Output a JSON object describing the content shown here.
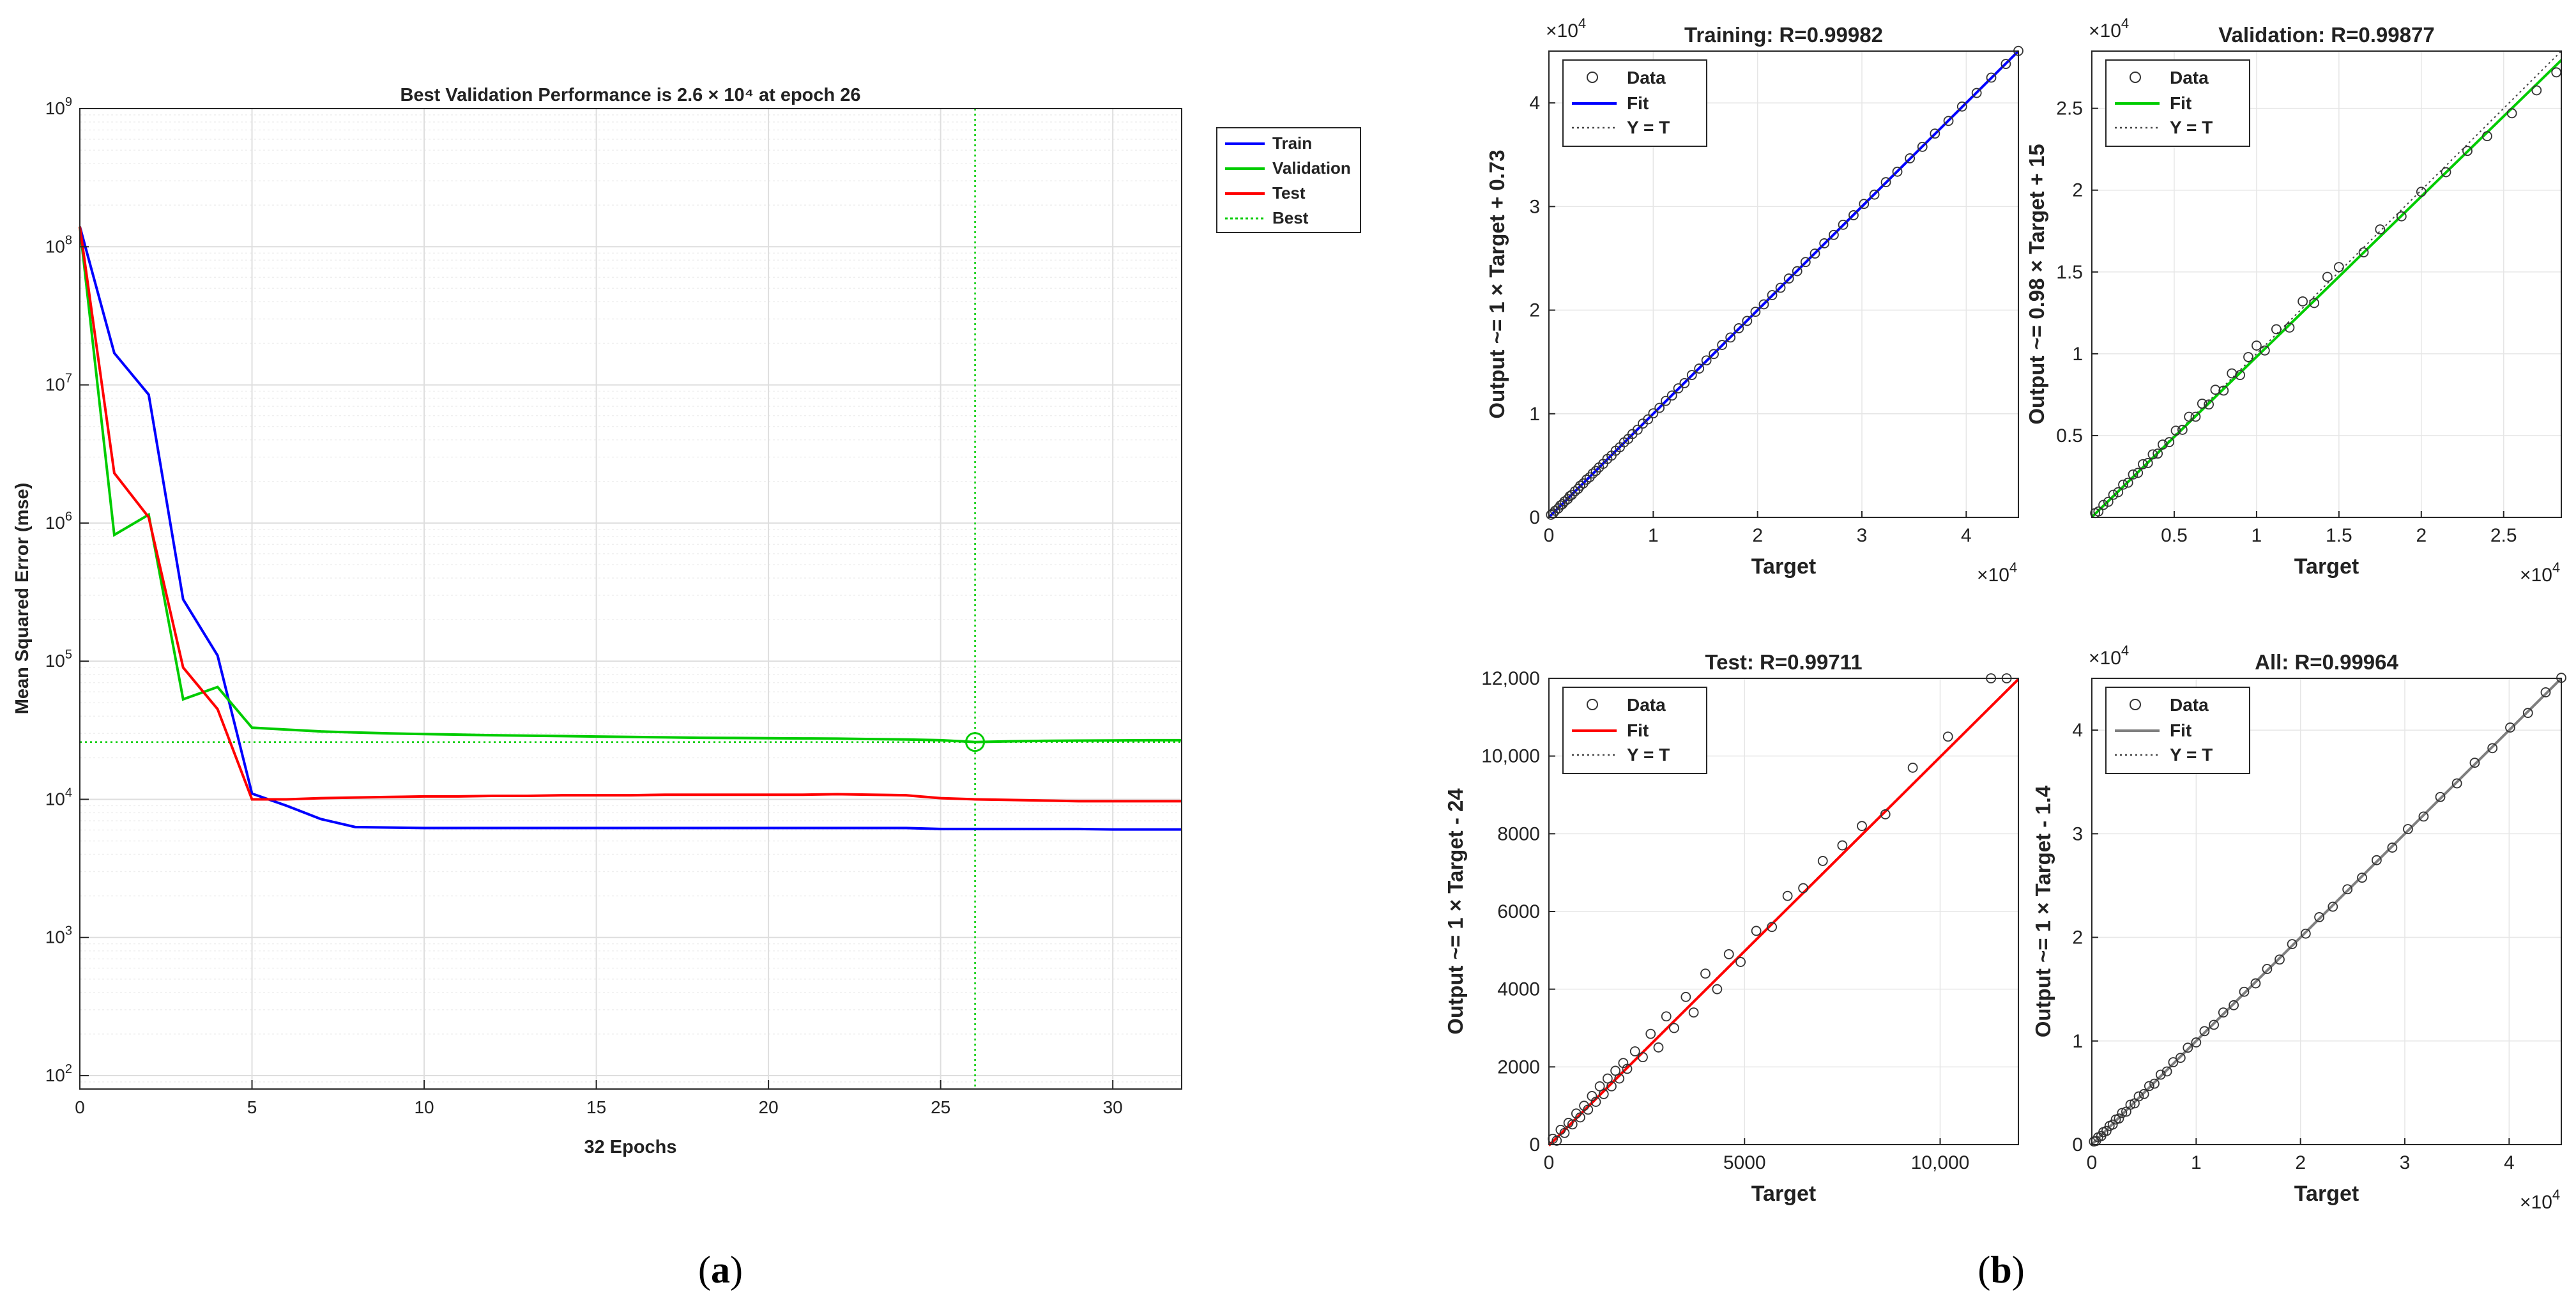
{
  "figure": {
    "caption_a": {
      "open": "(",
      "letter": "a",
      "close": ")"
    },
    "caption_b": {
      "open": "(",
      "letter": "b",
      "close": ")"
    }
  },
  "colors": {
    "train": "#0000ff",
    "validation": "#00cc00",
    "test": "#ff0000",
    "all": "#7f7f7f",
    "grid": "#e6e6e6",
    "axis": "#262626"
  },
  "chart_data": [
    {
      "id": "performance",
      "type": "line",
      "title": "Best Validation Performance is 2.6 × 10⁴ at epoch 26",
      "xlabel": "32 Epochs",
      "ylabel": "Mean Squared Error  (mse)",
      "yscale": "log",
      "xlim": [
        0,
        32
      ],
      "ylim": [
        80,
        1000000000
      ],
      "xticks": [
        0,
        5,
        10,
        15,
        20,
        25,
        30
      ],
      "yticks": [
        {
          "v": 100,
          "base": "10",
          "exp": "2"
        },
        {
          "v": 1000,
          "base": "10",
          "exp": "3"
        },
        {
          "v": 10000,
          "base": "10",
          "exp": "4"
        },
        {
          "v": 100000,
          "base": "10",
          "exp": "5"
        },
        {
          "v": 1000000,
          "base": "10",
          "exp": "6"
        },
        {
          "v": 10000000,
          "base": "10",
          "exp": "7"
        },
        {
          "v": 100000000,
          "base": "10",
          "exp": "8"
        },
        {
          "v": 1000000000,
          "base": "10",
          "exp": "9"
        }
      ],
      "x": [
        0,
        1,
        2,
        3,
        4,
        5,
        6,
        7,
        8,
        9,
        10,
        11,
        12,
        13,
        14,
        15,
        16,
        17,
        18,
        19,
        20,
        21,
        22,
        23,
        24,
        25,
        26,
        27,
        28,
        29,
        30,
        31,
        32
      ],
      "series": [
        {
          "name": "Train",
          "color": "#0000ff",
          "values": [
            140000000,
            17000000,
            8500000,
            280000,
            110000,
            11000,
            9000,
            7200,
            6300,
            6250,
            6200,
            6200,
            6200,
            6200,
            6200,
            6200,
            6200,
            6200,
            6200,
            6200,
            6200,
            6200,
            6200,
            6200,
            6200,
            6100,
            6100,
            6100,
            6100,
            6100,
            6050,
            6050,
            6050
          ]
        },
        {
          "name": "Validation",
          "color": "#00cc00",
          "values": [
            140000000,
            820000,
            1150000,
            53000,
            65000,
            33000,
            32000,
            31000,
            30500,
            30000,
            29700,
            29400,
            29100,
            28900,
            28700,
            28500,
            28300,
            28100,
            27900,
            27800,
            27700,
            27600,
            27500,
            27300,
            27100,
            26800,
            26000,
            26300,
            26500,
            26600,
            26700,
            26800,
            26800
          ]
        },
        {
          "name": "Test",
          "color": "#ff0000",
          "values": [
            140000000,
            2300000,
            1100000,
            90000,
            45000,
            10000,
            10000,
            10200,
            10300,
            10400,
            10500,
            10500,
            10600,
            10600,
            10700,
            10700,
            10700,
            10800,
            10800,
            10800,
            10800,
            10800,
            10900,
            10800,
            10700,
            10200,
            10000,
            9900,
            9800,
            9700,
            9700,
            9700,
            9700
          ]
        }
      ],
      "best": {
        "name": "Best",
        "epoch": 26,
        "value": 26000,
        "color": "#00cc00"
      },
      "legend": [
        "Train",
        "Validation",
        "Test",
        "Best"
      ]
    },
    {
      "id": "training",
      "type": "scatter",
      "title": "Training: R=0.99982",
      "xlabel": "Target",
      "ylabel": "Output ~= 1 × Target + 0.73",
      "xlim": [
        0,
        45000
      ],
      "ylim": [
        0,
        45000
      ],
      "xticks": [
        0,
        10000,
        20000,
        30000,
        40000
      ],
      "xticklabels": [
        "0",
        "1",
        "2",
        "3",
        "4"
      ],
      "yticks": [
        0,
        10000,
        20000,
        30000,
        40000
      ],
      "yticklabels": [
        "0",
        "1",
        "2",
        "3",
        "4"
      ],
      "exponent": {
        "base": "×10",
        "exp": "4"
      },
      "fit": {
        "slope": 1.0,
        "intercept": 0.73,
        "color": "#0000ff"
      },
      "points": [
        [
          200,
          250
        ],
        [
          400,
          380
        ],
        [
          600,
          640
        ],
        [
          900,
          870
        ],
        [
          1100,
          1150
        ],
        [
          1300,
          1280
        ],
        [
          1500,
          1540
        ],
        [
          1800,
          1760
        ],
        [
          2000,
          2050
        ],
        [
          2200,
          2180
        ],
        [
          2500,
          2520
        ],
        [
          2800,
          2760
        ],
        [
          3000,
          3050
        ],
        [
          3300,
          3280
        ],
        [
          3600,
          3640
        ],
        [
          3900,
          3870
        ],
        [
          4200,
          4230
        ],
        [
          4500,
          4480
        ],
        [
          4800,
          4820
        ],
        [
          5200,
          5170
        ],
        [
          5600,
          5640
        ],
        [
          6000,
          5960
        ],
        [
          6400,
          6430
        ],
        [
          6800,
          6770
        ],
        [
          7200,
          7240
        ],
        [
          7600,
          7570
        ],
        [
          8000,
          8040
        ],
        [
          8500,
          8460
        ],
        [
          9000,
          9050
        ],
        [
          9500,
          9460
        ],
        [
          10000,
          10040
        ],
        [
          10600,
          10570
        ],
        [
          11200,
          11240
        ],
        [
          11800,
          11760
        ],
        [
          12400,
          12450
        ],
        [
          13000,
          12960
        ],
        [
          13700,
          13740
        ],
        [
          14400,
          14360
        ],
        [
          15100,
          15150
        ],
        [
          15800,
          15760
        ],
        [
          16600,
          16640
        ],
        [
          17400,
          17360
        ],
        [
          18200,
          18250
        ],
        [
          19000,
          18960
        ],
        [
          19800,
          19840
        ],
        [
          20600,
          20560
        ],
        [
          21400,
          21450
        ],
        [
          22200,
          22160
        ],
        [
          23000,
          23050
        ],
        [
          23800,
          23760
        ],
        [
          24600,
          24640
        ],
        [
          25500,
          25460
        ],
        [
          26400,
          26450
        ],
        [
          27300,
          27260
        ],
        [
          28200,
          28240
        ],
        [
          29200,
          29160
        ],
        [
          30200,
          30250
        ],
        [
          31200,
          31150
        ],
        [
          32300,
          32350
        ],
        [
          33400,
          33360
        ],
        [
          34600,
          34650
        ],
        [
          35800,
          35760
        ],
        [
          37000,
          37040
        ],
        [
          38300,
          38260
        ],
        [
          39600,
          39650
        ],
        [
          41000,
          40960
        ],
        [
          42400,
          42440
        ],
        [
          43800,
          43760
        ],
        [
          45000,
          45020
        ]
      ]
    },
    {
      "id": "validation",
      "type": "scatter",
      "title": "Validation: R=0.99877",
      "xlabel": "Target",
      "ylabel": "Output ~= 0.98 × Target + 15",
      "xlim": [
        0,
        28500
      ],
      "ylim": [
        0,
        28500
      ],
      "xticks": [
        5000,
        10000,
        15000,
        20000,
        25000
      ],
      "xticklabels": [
        "0.5",
        "1",
        "1.5",
        "2",
        "2.5"
      ],
      "yticks": [
        5000,
        10000,
        15000,
        20000,
        25000
      ],
      "yticklabels": [
        "0.5",
        "1",
        "1.5",
        "2",
        "2.5"
      ],
      "exponent": {
        "base": "×10",
        "exp": "4"
      },
      "fit": {
        "slope": 0.98,
        "intercept": 15,
        "color": "#00cc00"
      },
      "points": [
        [
          200,
          260
        ],
        [
          400,
          360
        ],
        [
          700,
          760
        ],
        [
          1000,
          950
        ],
        [
          1300,
          1380
        ],
        [
          1600,
          1540
        ],
        [
          1900,
          2000
        ],
        [
          2200,
          2120
        ],
        [
          2500,
          2620
        ],
        [
          2800,
          2720
        ],
        [
          3100,
          3250
        ],
        [
          3400,
          3320
        ],
        [
          3700,
          3850
        ],
        [
          4000,
          3900
        ],
        [
          4300,
          4450
        ],
        [
          4700,
          4600
        ],
        [
          5100,
          5300
        ],
        [
          5500,
          5350
        ],
        [
          5900,
          6150
        ],
        [
          6300,
          6150
        ],
        [
          6700,
          6950
        ],
        [
          7100,
          6900
        ],
        [
          7500,
          7800
        ],
        [
          8000,
          7750
        ],
        [
          8500,
          8800
        ],
        [
          9000,
          8700
        ],
        [
          9500,
          9800
        ],
        [
          10000,
          10500
        ],
        [
          10500,
          10200
        ],
        [
          11200,
          11500
        ],
        [
          12000,
          11600
        ],
        [
          12800,
          13200
        ],
        [
          13500,
          13100
        ],
        [
          14300,
          14700
        ],
        [
          15000,
          15300
        ],
        [
          16500,
          16200
        ],
        [
          17500,
          17600
        ],
        [
          18800,
          18400
        ],
        [
          20000,
          19900
        ],
        [
          21500,
          21100
        ],
        [
          22800,
          22400
        ],
        [
          24000,
          23300
        ],
        [
          25500,
          24700
        ],
        [
          27000,
          26100
        ],
        [
          28200,
          27200
        ]
      ]
    },
    {
      "id": "test",
      "type": "scatter",
      "title": "Test: R=0.99711",
      "xlabel": "Target",
      "ylabel": "Output ~= 1 × Target - 24",
      "xlim": [
        0,
        12000
      ],
      "ylim": [
        0,
        12000
      ],
      "xticks": [
        0,
        5000,
        10000
      ],
      "xticklabels": [
        "0",
        "5000",
        "10,000"
      ],
      "yticks": [
        0,
        2000,
        4000,
        6000,
        8000,
        10000,
        12000
      ],
      "yticklabels": [
        "0",
        "2000",
        "4000",
        "6000",
        "8000",
        "10,000",
        "12,000"
      ],
      "exponent": null,
      "fit": {
        "slope": 1.0,
        "intercept": -24,
        "color": "#ff0000"
      },
      "points": [
        [
          100,
          150
        ],
        [
          200,
          100
        ],
        [
          300,
          380
        ],
        [
          400,
          300
        ],
        [
          500,
          560
        ],
        [
          600,
          520
        ],
        [
          700,
          800
        ],
        [
          800,
          700
        ],
        [
          900,
          1000
        ],
        [
          1000,
          900
        ],
        [
          1100,
          1250
        ],
        [
          1200,
          1100
        ],
        [
          1300,
          1500
        ],
        [
          1400,
          1300
        ],
        [
          1500,
          1700
        ],
        [
          1600,
          1500
        ],
        [
          1700,
          1900
        ],
        [
          1800,
          1700
        ],
        [
          1900,
          2100
        ],
        [
          2000,
          1950
        ],
        [
          2200,
          2400
        ],
        [
          2400,
          2250
        ],
        [
          2600,
          2850
        ],
        [
          2800,
          2500
        ],
        [
          3000,
          3300
        ],
        [
          3200,
          3000
        ],
        [
          3500,
          3800
        ],
        [
          3700,
          3400
        ],
        [
          4000,
          4400
        ],
        [
          4300,
          4000
        ],
        [
          4600,
          4900
        ],
        [
          4900,
          4700
        ],
        [
          5300,
          5500
        ],
        [
          5700,
          5600
        ],
        [
          6100,
          6400
        ],
        [
          6500,
          6600
        ],
        [
          7000,
          7300
        ],
        [
          7500,
          7700
        ],
        [
          8000,
          8200
        ],
        [
          8600,
          8500
        ],
        [
          9300,
          9700
        ],
        [
          10200,
          10500
        ],
        [
          11300,
          12000
        ],
        [
          11700,
          12000
        ]
      ]
    },
    {
      "id": "all",
      "type": "scatter",
      "title": "All: R=0.99964",
      "xlabel": "Target",
      "ylabel": "Output ~= 1 × Target - 1.4",
      "xlim": [
        0,
        45000
      ],
      "ylim": [
        0,
        45000
      ],
      "xticks": [
        0,
        10000,
        20000,
        30000,
        40000
      ],
      "xticklabels": [
        "0",
        "1",
        "2",
        "3",
        "4"
      ],
      "yticks": [
        0,
        10000,
        20000,
        30000,
        40000
      ],
      "yticklabels": [
        "0",
        "1",
        "2",
        "3",
        "4"
      ],
      "exponent": {
        "base": "×10",
        "exp": "4"
      },
      "fit": {
        "slope": 1.0,
        "intercept": -1.4,
        "color": "#7f7f7f"
      },
      "points": [
        [
          200,
          300
        ],
        [
          400,
          350
        ],
        [
          600,
          700
        ],
        [
          900,
          820
        ],
        [
          1100,
          1200
        ],
        [
          1400,
          1320
        ],
        [
          1700,
          1800
        ],
        [
          2000,
          1930
        ],
        [
          2300,
          2420
        ],
        [
          2600,
          2520
        ],
        [
          2900,
          3050
        ],
        [
          3300,
          3180
        ],
        [
          3700,
          3850
        ],
        [
          4100,
          3980
        ],
        [
          4500,
          4650
        ],
        [
          5000,
          4880
        ],
        [
          5500,
          5650
        ],
        [
          6000,
          5880
        ],
        [
          6600,
          6750
        ],
        [
          7200,
          7060
        ],
        [
          7800,
          7950
        ],
        [
          8500,
          8370
        ],
        [
          9200,
          9350
        ],
        [
          10000,
          9860
        ],
        [
          10800,
          10950
        ],
        [
          11700,
          11560
        ],
        [
          12600,
          12750
        ],
        [
          13600,
          13450
        ],
        [
          14600,
          14750
        ],
        [
          15700,
          15560
        ],
        [
          16800,
          16950
        ],
        [
          18000,
          17860
        ],
        [
          19200,
          19350
        ],
        [
          20500,
          20360
        ],
        [
          21800,
          21950
        ],
        [
          23100,
          22960
        ],
        [
          24500,
          24640
        ],
        [
          25900,
          25760
        ],
        [
          27300,
          27450
        ],
        [
          28800,
          28660
        ],
        [
          30300,
          30450
        ],
        [
          31800,
          31660
        ],
        [
          33400,
          33550
        ],
        [
          35000,
          34860
        ],
        [
          36700,
          36850
        ],
        [
          38400,
          38260
        ],
        [
          40100,
          40250
        ],
        [
          41800,
          41660
        ],
        [
          43500,
          43650
        ],
        [
          45000,
          45050
        ]
      ]
    }
  ],
  "legends": {
    "perf": [
      "Train",
      "Validation",
      "Test",
      "Best"
    ],
    "scatter": [
      "Data",
      "Fit",
      "Y = T"
    ]
  }
}
